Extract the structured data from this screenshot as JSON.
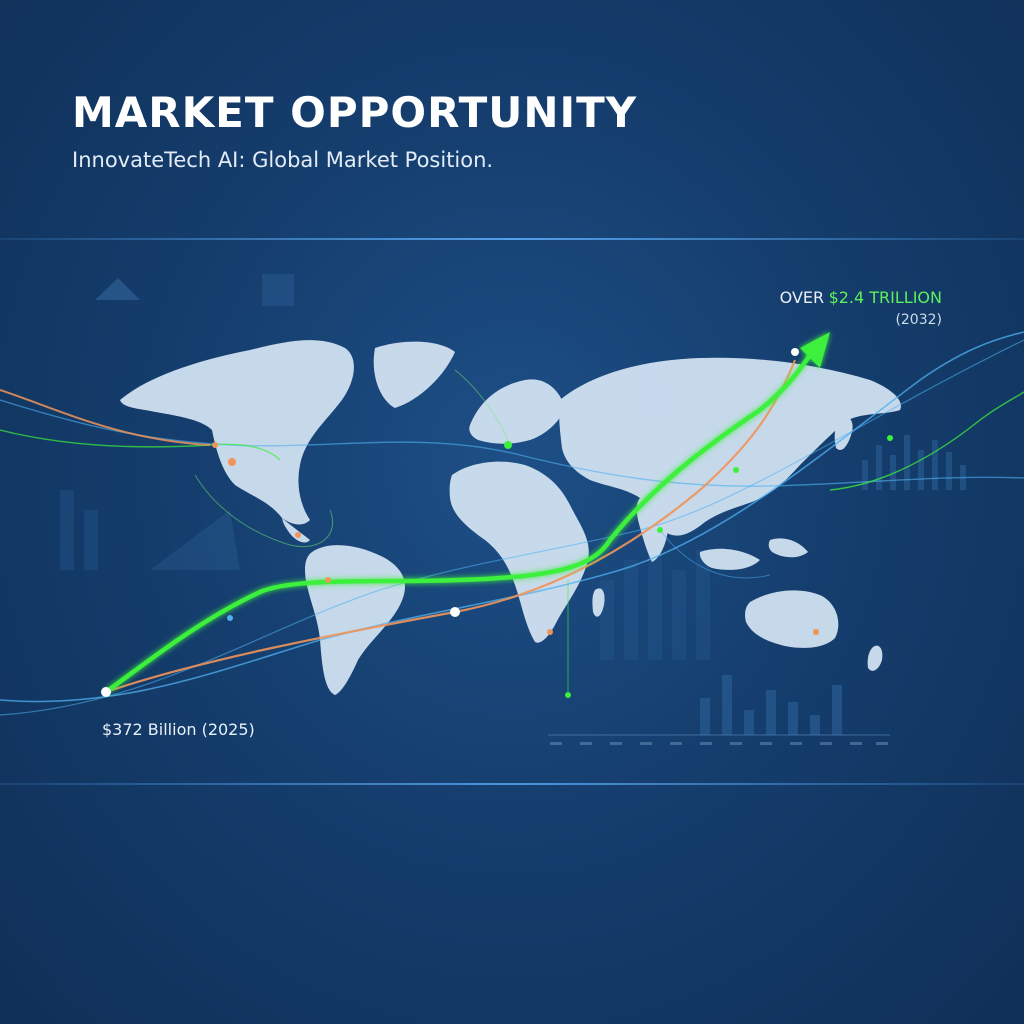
{
  "header": {
    "title": "MARKET OPPORTUNITY",
    "subtitle": "InnovateTech AI: Global Market Position."
  },
  "callouts": {
    "end": {
      "prefix": "OVER",
      "value": "$2.4 TRILLION",
      "year": "(2032)"
    },
    "start": {
      "label": "$372 Billion (2025)"
    }
  },
  "colors": {
    "background": "#153e6e",
    "growth_line": "#3cf03c",
    "secondary_line": "#f0945a",
    "accent_line": "#4fb0f0",
    "map_fill": "#d6e6f5"
  },
  "icons": {
    "growth_arrow": "arrow-head-icon",
    "map": "world-map-icon"
  }
}
